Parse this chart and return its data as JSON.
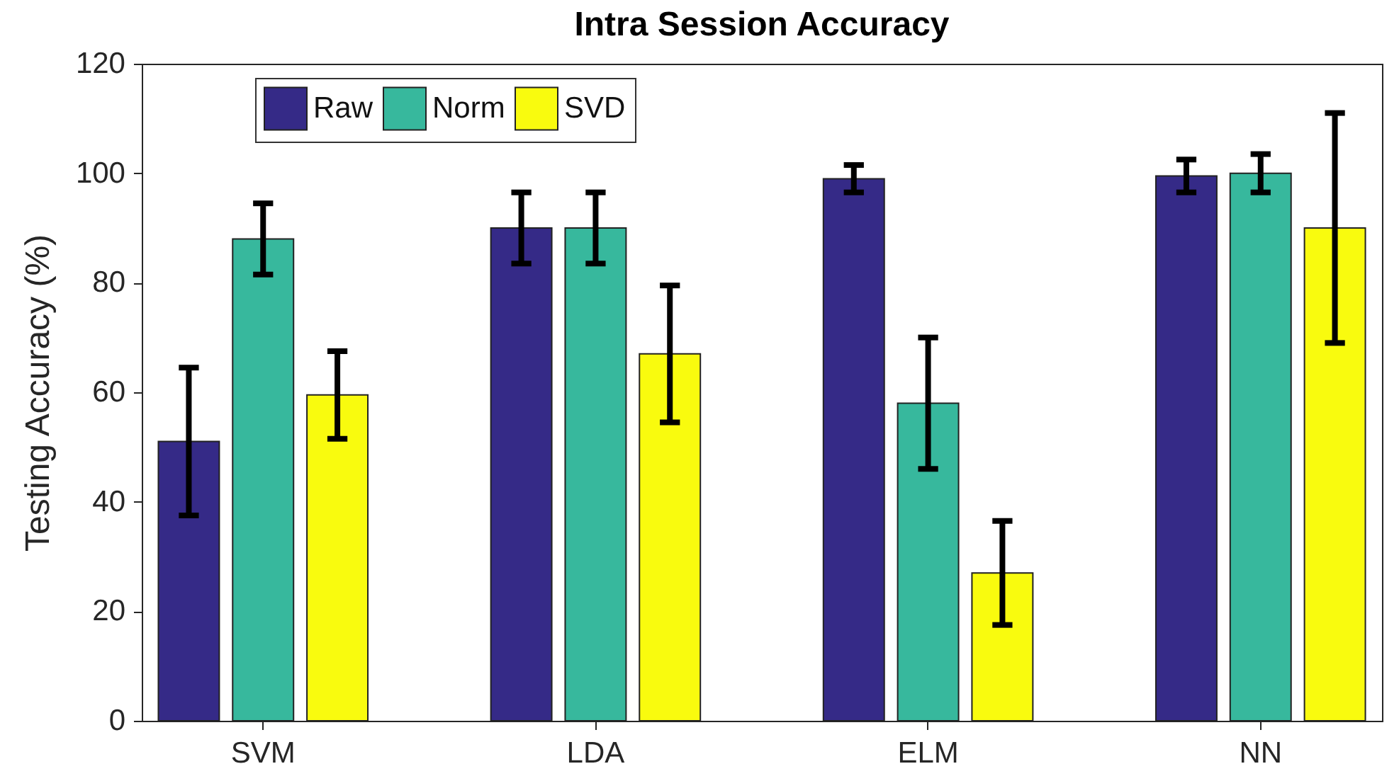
{
  "chart_data": {
    "type": "bar",
    "title": "Intra Session Accuracy",
    "ylabel": "Testing Accuracy (%)",
    "categories": [
      "SVM",
      "LDA",
      "ELM",
      "NN"
    ],
    "series": [
      {
        "name": "Raw",
        "color": "#352a87",
        "values": [
          51,
          90,
          99,
          99.5
        ],
        "errors": [
          13.5,
          6.5,
          2.5,
          3
        ]
      },
      {
        "name": "Norm",
        "color": "#37b89d",
        "values": [
          88,
          90,
          58,
          100
        ],
        "errors": [
          6.5,
          6.5,
          12,
          3.5
        ]
      },
      {
        "name": "SVD",
        "color": "#f9fb0e",
        "values": [
          59.5,
          67,
          27,
          90
        ],
        "errors": [
          8,
          12.5,
          9.5,
          21
        ]
      }
    ],
    "ylim": [
      0,
      120
    ],
    "yticks": [
      0,
      20,
      40,
      60,
      80,
      100,
      120
    ],
    "grid": false,
    "legend": "top left"
  }
}
